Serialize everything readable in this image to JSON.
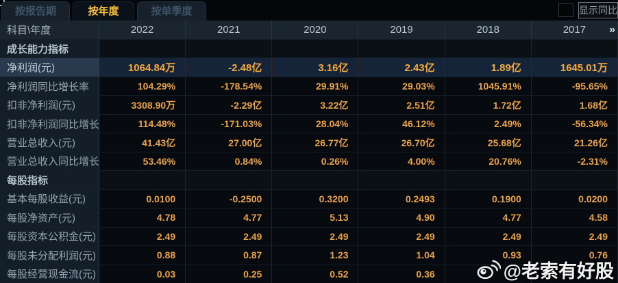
{
  "tabs": [
    {
      "label": "按报告期",
      "active": false
    },
    {
      "label": "按年度",
      "active": true
    },
    {
      "label": "按单季度",
      "active": false
    }
  ],
  "show_yoy": {
    "label": "显示同比",
    "checked": false
  },
  "table": {
    "corner_label": "科目\\年度",
    "years": [
      "2022",
      "2021",
      "2020",
      "2019",
      "2018",
      "2017"
    ],
    "more_label": "»",
    "rows": [
      {
        "type": "section",
        "label": "成长能力指标",
        "values": [
          "",
          "",
          "",
          "",
          "",
          ""
        ]
      },
      {
        "type": "highlight",
        "label": "净利润(元)",
        "values": [
          "1064.84万",
          "-2.48亿",
          "3.16亿",
          "2.43亿",
          "1.89亿",
          "1645.01万"
        ]
      },
      {
        "type": "data",
        "label": "净利润同比增长率",
        "values": [
          "104.29%",
          "-178.54%",
          "29.91%",
          "29.03%",
          "1045.91%",
          "-95.65%"
        ]
      },
      {
        "type": "data",
        "label": "扣非净利润(元)",
        "values": [
          "3308.90万",
          "-2.29亿",
          "3.22亿",
          "2.51亿",
          "1.72亿",
          "1.68亿"
        ]
      },
      {
        "type": "data",
        "label": "扣非净利润同比增长率",
        "values": [
          "114.48%",
          "-171.03%",
          "28.04%",
          "46.12%",
          "2.49%",
          "-56.34%"
        ]
      },
      {
        "type": "data",
        "label": "营业总收入(元)",
        "values": [
          "41.43亿",
          "27.00亿",
          "26.77亿",
          "26.70亿",
          "25.68亿",
          "21.26亿"
        ]
      },
      {
        "type": "data",
        "label": "营业总收入同比增长率",
        "values": [
          "53.46%",
          "0.84%",
          "0.26%",
          "4.00%",
          "20.76%",
          "-2.31%"
        ]
      },
      {
        "type": "section",
        "label": "每股指标",
        "values": [
          "",
          "",
          "",
          "",
          "",
          ""
        ]
      },
      {
        "type": "data",
        "label": "基本每股收益(元)",
        "values": [
          "0.0100",
          "-0.2500",
          "0.3200",
          "0.2493",
          "0.1900",
          "0.0200"
        ]
      },
      {
        "type": "data",
        "label": "每股净资产(元)",
        "values": [
          "4.78",
          "4.77",
          "5.13",
          "4.90",
          "4.77",
          "4.58"
        ]
      },
      {
        "type": "data",
        "label": "每股资本公积金(元)",
        "values": [
          "2.49",
          "2.49",
          "2.49",
          "2.49",
          "2.49",
          "2.49"
        ]
      },
      {
        "type": "data",
        "label": "每股未分配利润(元)",
        "values": [
          "0.88",
          "0.87",
          "1.23",
          "1.04",
          "0.93",
          "0.76"
        ]
      },
      {
        "type": "data",
        "label": "每股经营现金流(元)",
        "values": [
          "0.03",
          "0.25",
          "0.52",
          "0.36",
          "",
          ""
        ]
      }
    ]
  },
  "watermark": {
    "text": "@老索有好股",
    "icon": "weibo-icon"
  },
  "colors": {
    "value_orange": "#eca448",
    "highlight_value_orange": "#f4ab3c",
    "tab_active_text": "#ffc63a",
    "highlight_row_bg": "#16243a",
    "label_col_bg": "#141e28",
    "header_row_bg": "#1b2530",
    "page_bg": "#05080c"
  }
}
